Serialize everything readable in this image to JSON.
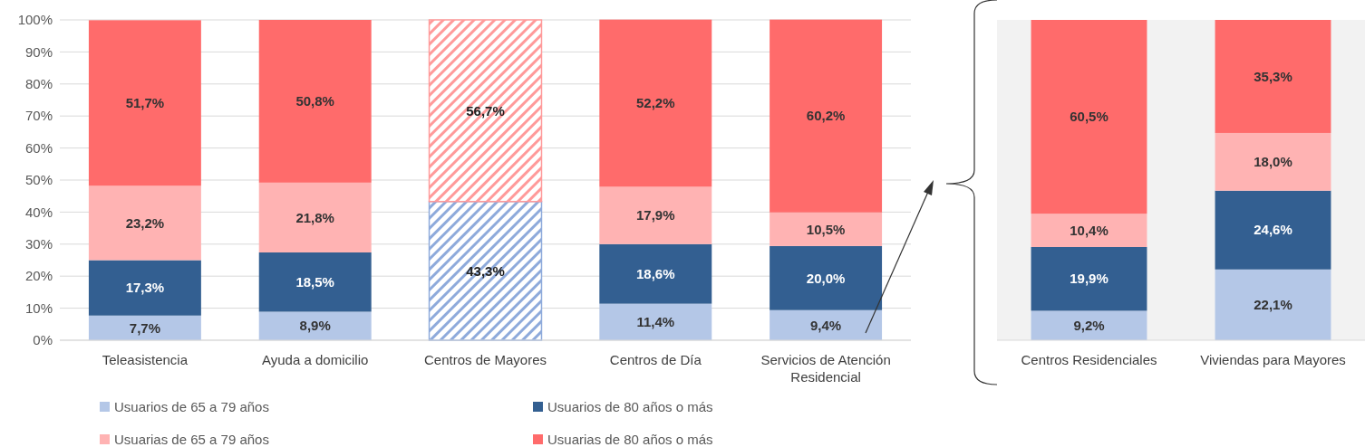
{
  "chart_data": [
    {
      "type": "bar",
      "stacked": true,
      "categories": [
        "Teleasistencia",
        "Ayuda a domicilio",
        "Centros de Mayores",
        "Centros de Día",
        "Servicios de Atención Residencial"
      ],
      "ylim": [
        0,
        100
      ],
      "yticks": [
        {
          "value": 0,
          "label": "0%"
        },
        {
          "value": 10,
          "label": "10%"
        },
        {
          "value": 20,
          "label": "20%"
        },
        {
          "value": 30,
          "label": "30%"
        },
        {
          "value": 40,
          "label": "40%"
        },
        {
          "value": 50,
          "label": "50%"
        },
        {
          "value": 60,
          "label": "60%"
        },
        {
          "value": 70,
          "label": "70%"
        },
        {
          "value": 80,
          "label": "80%"
        },
        {
          "value": 90,
          "label": "90%"
        },
        {
          "value": 100,
          "label": "100%"
        }
      ],
      "grid": "y",
      "legend": "bottom",
      "series": [
        {
          "name": "Usuarios de 65 a 79 años",
          "color": "#b4c7e7",
          "values": [
            7.7,
            8.9,
            null,
            11.4,
            9.4
          ],
          "value_labels": [
            "7,7%",
            "8,9%",
            null,
            "11,4%",
            "9,4%"
          ]
        },
        {
          "name": "Usuarios de 80 años o más",
          "color": "#335f91",
          "values": [
            17.3,
            18.5,
            null,
            18.6,
            20.0
          ],
          "value_labels": [
            "17,3%",
            "18,5%",
            null,
            "18,6%",
            "20,0%"
          ]
        },
        {
          "name": "Usuarias de 65 a 79 años",
          "color": "#ffb3b3",
          "values": [
            23.2,
            21.8,
            null,
            17.9,
            10.5
          ],
          "value_labels": [
            "23,2%",
            "21,8%",
            null,
            "17,9%",
            "10,5%"
          ]
        },
        {
          "name": "Usuarias de 80 años o más",
          "color": "#ff6b6b",
          "values": [
            51.7,
            50.8,
            null,
            52.2,
            60.2
          ],
          "value_labels": [
            "51,7%",
            "50,8%",
            null,
            "52,2%",
            "60,2%"
          ]
        },
        {
          "color": "#8eaadb",
          "values": [
            null,
            null,
            43.3,
            null,
            null
          ],
          "value_labels": [
            null,
            null,
            "43,3%",
            null,
            null
          ]
        },
        {
          "color": "#ff9a9a",
          "values": [
            null,
            null,
            56.7,
            null,
            null
          ],
          "value_labels": [
            null,
            null,
            "56,7%",
            null,
            null
          ]
        }
      ]
    },
    {
      "type": "bar",
      "stacked": true,
      "categories": [
        "Centros Residenciales",
        "Viviendas para Mayores"
      ],
      "ylim": [
        0,
        100
      ],
      "tick_labels": "x",
      "series": [
        {
          "color": "#b4c7e7",
          "values": [
            9.2,
            22.1
          ],
          "value_labels": [
            "9,2%",
            "22,1%"
          ]
        },
        {
          "color": "#335f91",
          "values": [
            19.9,
            24.6
          ],
          "value_labels": [
            "19,9%",
            "24,6%"
          ]
        },
        {
          "color": "#ffb3b3",
          "values": [
            10.4,
            18.0
          ],
          "value_labels": [
            "10,4%",
            "18,0%"
          ]
        },
        {
          "color": "#ff6b6b",
          "values": [
            60.5,
            35.3
          ],
          "value_labels": [
            "60,5%",
            "35,3%"
          ]
        }
      ]
    }
  ]
}
